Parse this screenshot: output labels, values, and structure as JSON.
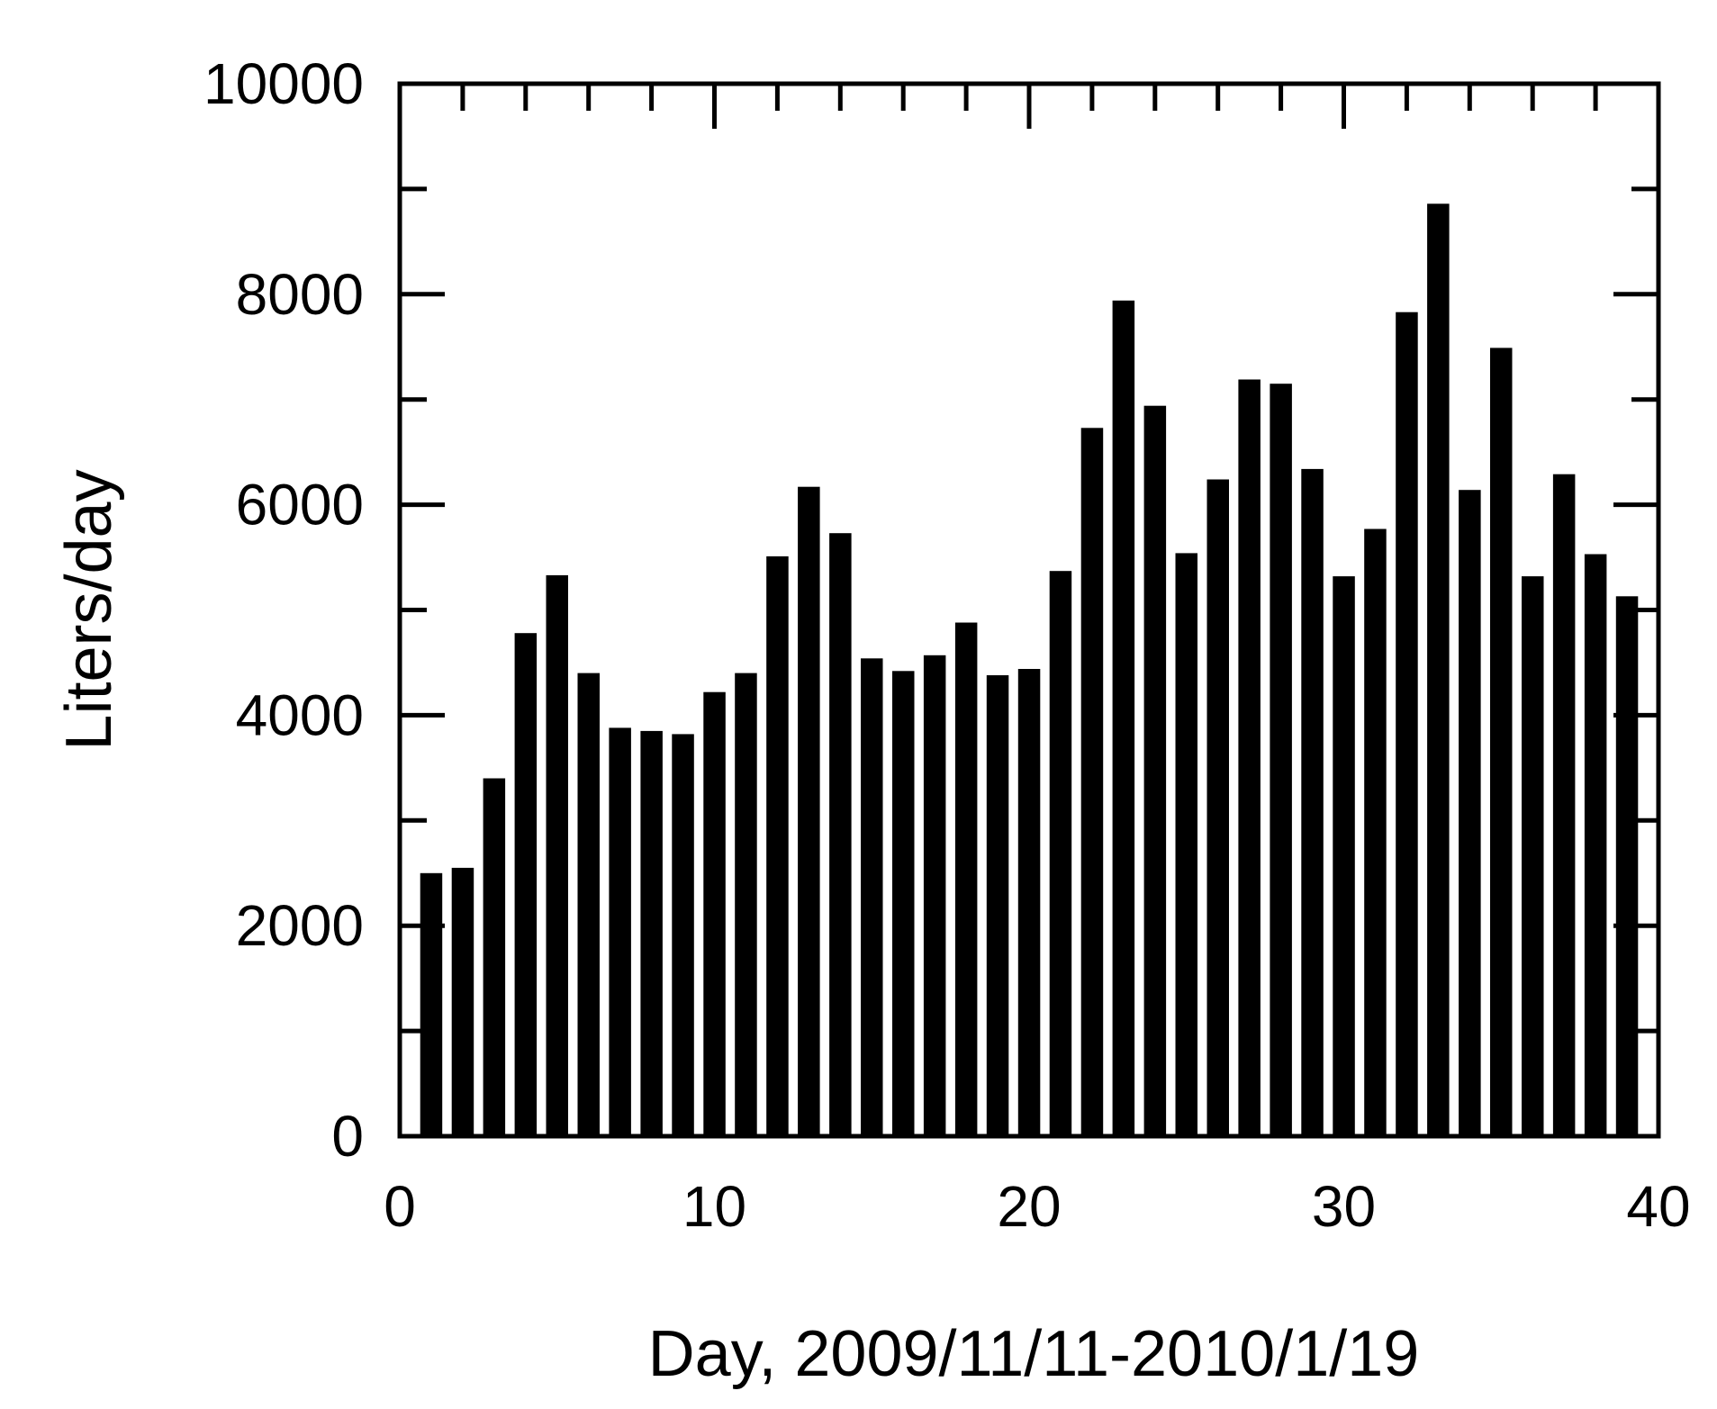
{
  "chart_data": {
    "type": "bar",
    "title": "",
    "xlabel": "Day, 2009/11/11-2010/1/19",
    "ylabel": "Liters/day",
    "xlim": [
      0,
      40
    ],
    "ylim": [
      0,
      10000
    ],
    "x_ticks": [
      "0",
      "10",
      "20",
      "30",
      "40"
    ],
    "y_ticks": [
      "0",
      "2000",
      "4000",
      "6000",
      "8000",
      "10000"
    ],
    "grid": false,
    "legend": "none",
    "bar_color": "#000000",
    "x": [
      1,
      2,
      3,
      4,
      5,
      6,
      7,
      8,
      9,
      10,
      11,
      12,
      13,
      14,
      15,
      16,
      17,
      18,
      19,
      20,
      21,
      22,
      23,
      24,
      25,
      26,
      27,
      28,
      29,
      30,
      31,
      32,
      33,
      34,
      35,
      36,
      37,
      38,
      39
    ],
    "values": [
      2500,
      2550,
      3400,
      4780,
      5330,
      4400,
      3880,
      3850,
      3820,
      4220,
      4400,
      5510,
      6170,
      5730,
      4540,
      4420,
      4570,
      4880,
      4380,
      4440,
      5370,
      6730,
      7940,
      6940,
      5540,
      6240,
      7190,
      7150,
      6340,
      5320,
      5770,
      7830,
      8860,
      6140,
      7490,
      5320,
      6290,
      5530,
      5130
    ]
  }
}
